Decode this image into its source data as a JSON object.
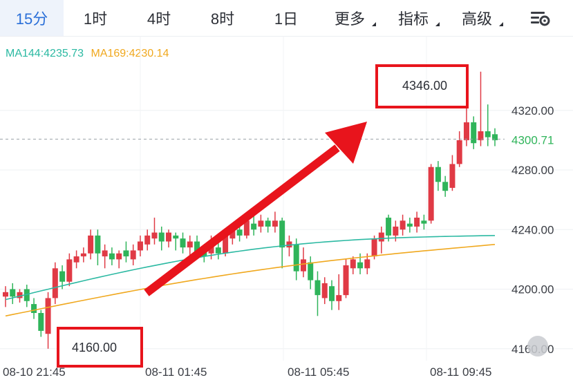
{
  "tabs": [
    {
      "label": "15分",
      "active": true,
      "dropdown": false
    },
    {
      "label": "1时",
      "active": false,
      "dropdown": false
    },
    {
      "label": "4时",
      "active": false,
      "dropdown": false
    },
    {
      "label": "8时",
      "active": false,
      "dropdown": false
    },
    {
      "label": "1日",
      "active": false,
      "dropdown": false
    },
    {
      "label": "更多",
      "active": false,
      "dropdown": true
    },
    {
      "label": "指标",
      "active": false,
      "dropdown": true
    },
    {
      "label": "高级",
      "active": false,
      "dropdown": true
    }
  ],
  "settings_icon": "chart-settings-icon",
  "legend": {
    "ma144": "MA144:4235.73",
    "ma169": "MA169:4230.14"
  },
  "colors": {
    "up": "#e03a45",
    "down": "#2fb45a",
    "ma144": "#2bb9a2",
    "ma169": "#f0a81e",
    "annotation": "#e8141c",
    "active_tab": "#2a6fd8"
  },
  "chart_data": {
    "type": "candlestick",
    "y_ticks": [
      "4320.00",
      "4280.00",
      "4240.00",
      "4200.00",
      "4160.00"
    ],
    "y_tick_values": [
      4320,
      4280,
      4240,
      4200,
      4160
    ],
    "ylim": [
      4152,
      4370
    ],
    "last_price_label": "4300.71",
    "last_price": 4300.71,
    "x_labels": [
      "08-10 21:45",
      "08-11 01:45",
      "08-11 05:45",
      "08-11 09:45"
    ],
    "annotations": [
      {
        "text": "4346.00",
        "kind": "high"
      },
      {
        "text": "4160.00",
        "kind": "low"
      }
    ],
    "candles": [
      [
        4195,
        4198,
        4188,
        4202
      ],
      [
        4200,
        4195,
        4190,
        4204
      ],
      [
        4194,
        4198,
        4191,
        4200
      ],
      [
        4200,
        4192,
        4188,
        4203
      ],
      [
        4190,
        4184,
        4180,
        4194
      ],
      [
        4184,
        4172,
        4168,
        4186
      ],
      [
        4170,
        4194,
        4160,
        4198
      ],
      [
        4194,
        4214,
        4190,
        4218
      ],
      [
        4212,
        4205,
        4200,
        4216
      ],
      [
        4205,
        4220,
        4202,
        4224
      ],
      [
        4218,
        4222,
        4214,
        4226
      ],
      [
        4222,
        4224,
        4218,
        4228
      ],
      [
        4224,
        4236,
        4220,
        4240
      ],
      [
        4236,
        4224,
        4216,
        4240
      ],
      [
        4222,
        4226,
        4214,
        4230
      ],
      [
        4224,
        4220,
        4216,
        4228
      ],
      [
        4220,
        4224,
        4214,
        4226
      ],
      [
        4226,
        4222,
        4218,
        4232
      ],
      [
        4220,
        4226,
        4216,
        4230
      ],
      [
        4226,
        4232,
        4222,
        4236
      ],
      [
        4230,
        4236,
        4226,
        4240
      ],
      [
        4234,
        4238,
        4230,
        4248
      ],
      [
        4238,
        4232,
        4226,
        4242
      ],
      [
        4232,
        4238,
        4228,
        4240
      ],
      [
        4236,
        4234,
        4226,
        4238
      ],
      [
        4234,
        4228,
        4224,
        4238
      ],
      [
        4228,
        4232,
        4222,
        4236
      ],
      [
        4232,
        4224,
        4220,
        4236
      ],
      [
        4226,
        4222,
        4218,
        4230
      ],
      [
        4224,
        4232,
        4220,
        4236
      ],
      [
        4228,
        4224,
        4220,
        4234
      ],
      [
        4224,
        4236,
        4222,
        4240
      ],
      [
        4234,
        4242,
        4230,
        4244
      ],
      [
        4240,
        4236,
        4232,
        4244
      ],
      [
        4236,
        4246,
        4234,
        4248
      ],
      [
        4244,
        4240,
        4236,
        4250
      ],
      [
        4242,
        4246,
        4238,
        4250
      ],
      [
        4246,
        4242,
        4238,
        4248
      ],
      [
        4242,
        4246,
        4238,
        4252
      ],
      [
        4246,
        4228,
        4214,
        4248
      ],
      [
        4228,
        4232,
        4222,
        4236
      ],
      [
        4230,
        4212,
        4206,
        4234
      ],
      [
        4212,
        4220,
        4208,
        4228
      ],
      [
        4218,
        4206,
        4200,
        4222
      ],
      [
        4206,
        4196,
        4182,
        4212
      ],
      [
        4194,
        4204,
        4190,
        4208
      ],
      [
        4202,
        4192,
        4186,
        4206
      ],
      [
        4192,
        4196,
        4186,
        4210
      ],
      [
        4196,
        4216,
        4194,
        4220
      ],
      [
        4214,
        4220,
        4210,
        4222
      ],
      [
        4218,
        4214,
        4210,
        4224
      ],
      [
        4214,
        4220,
        4210,
        4224
      ],
      [
        4222,
        4234,
        4220,
        4236
      ],
      [
        4232,
        4238,
        4224,
        4242
      ],
      [
        4248,
        4236,
        4232,
        4250
      ],
      [
        4236,
        4242,
        4232,
        4246
      ],
      [
        4240,
        4246,
        4236,
        4250
      ],
      [
        4244,
        4242,
        4238,
        4248
      ],
      [
        4242,
        4248,
        4238,
        4252
      ],
      [
        4246,
        4244,
        4240,
        4250
      ],
      [
        4246,
        4282,
        4244,
        4284
      ],
      [
        4282,
        4272,
        4266,
        4286
      ],
      [
        4272,
        4266,
        4262,
        4276
      ],
      [
        4268,
        4284,
        4266,
        4290
      ],
      [
        4284,
        4300,
        4282,
        4306
      ],
      [
        4300,
        4312,
        4296,
        4328
      ],
      [
        4312,
        4298,
        4294,
        4316
      ],
      [
        4300,
        4306,
        4296,
        4346
      ],
      [
        4306,
        4302,
        4296,
        4324
      ],
      [
        4304,
        4300,
        4296,
        4308
      ]
    ]
  }
}
